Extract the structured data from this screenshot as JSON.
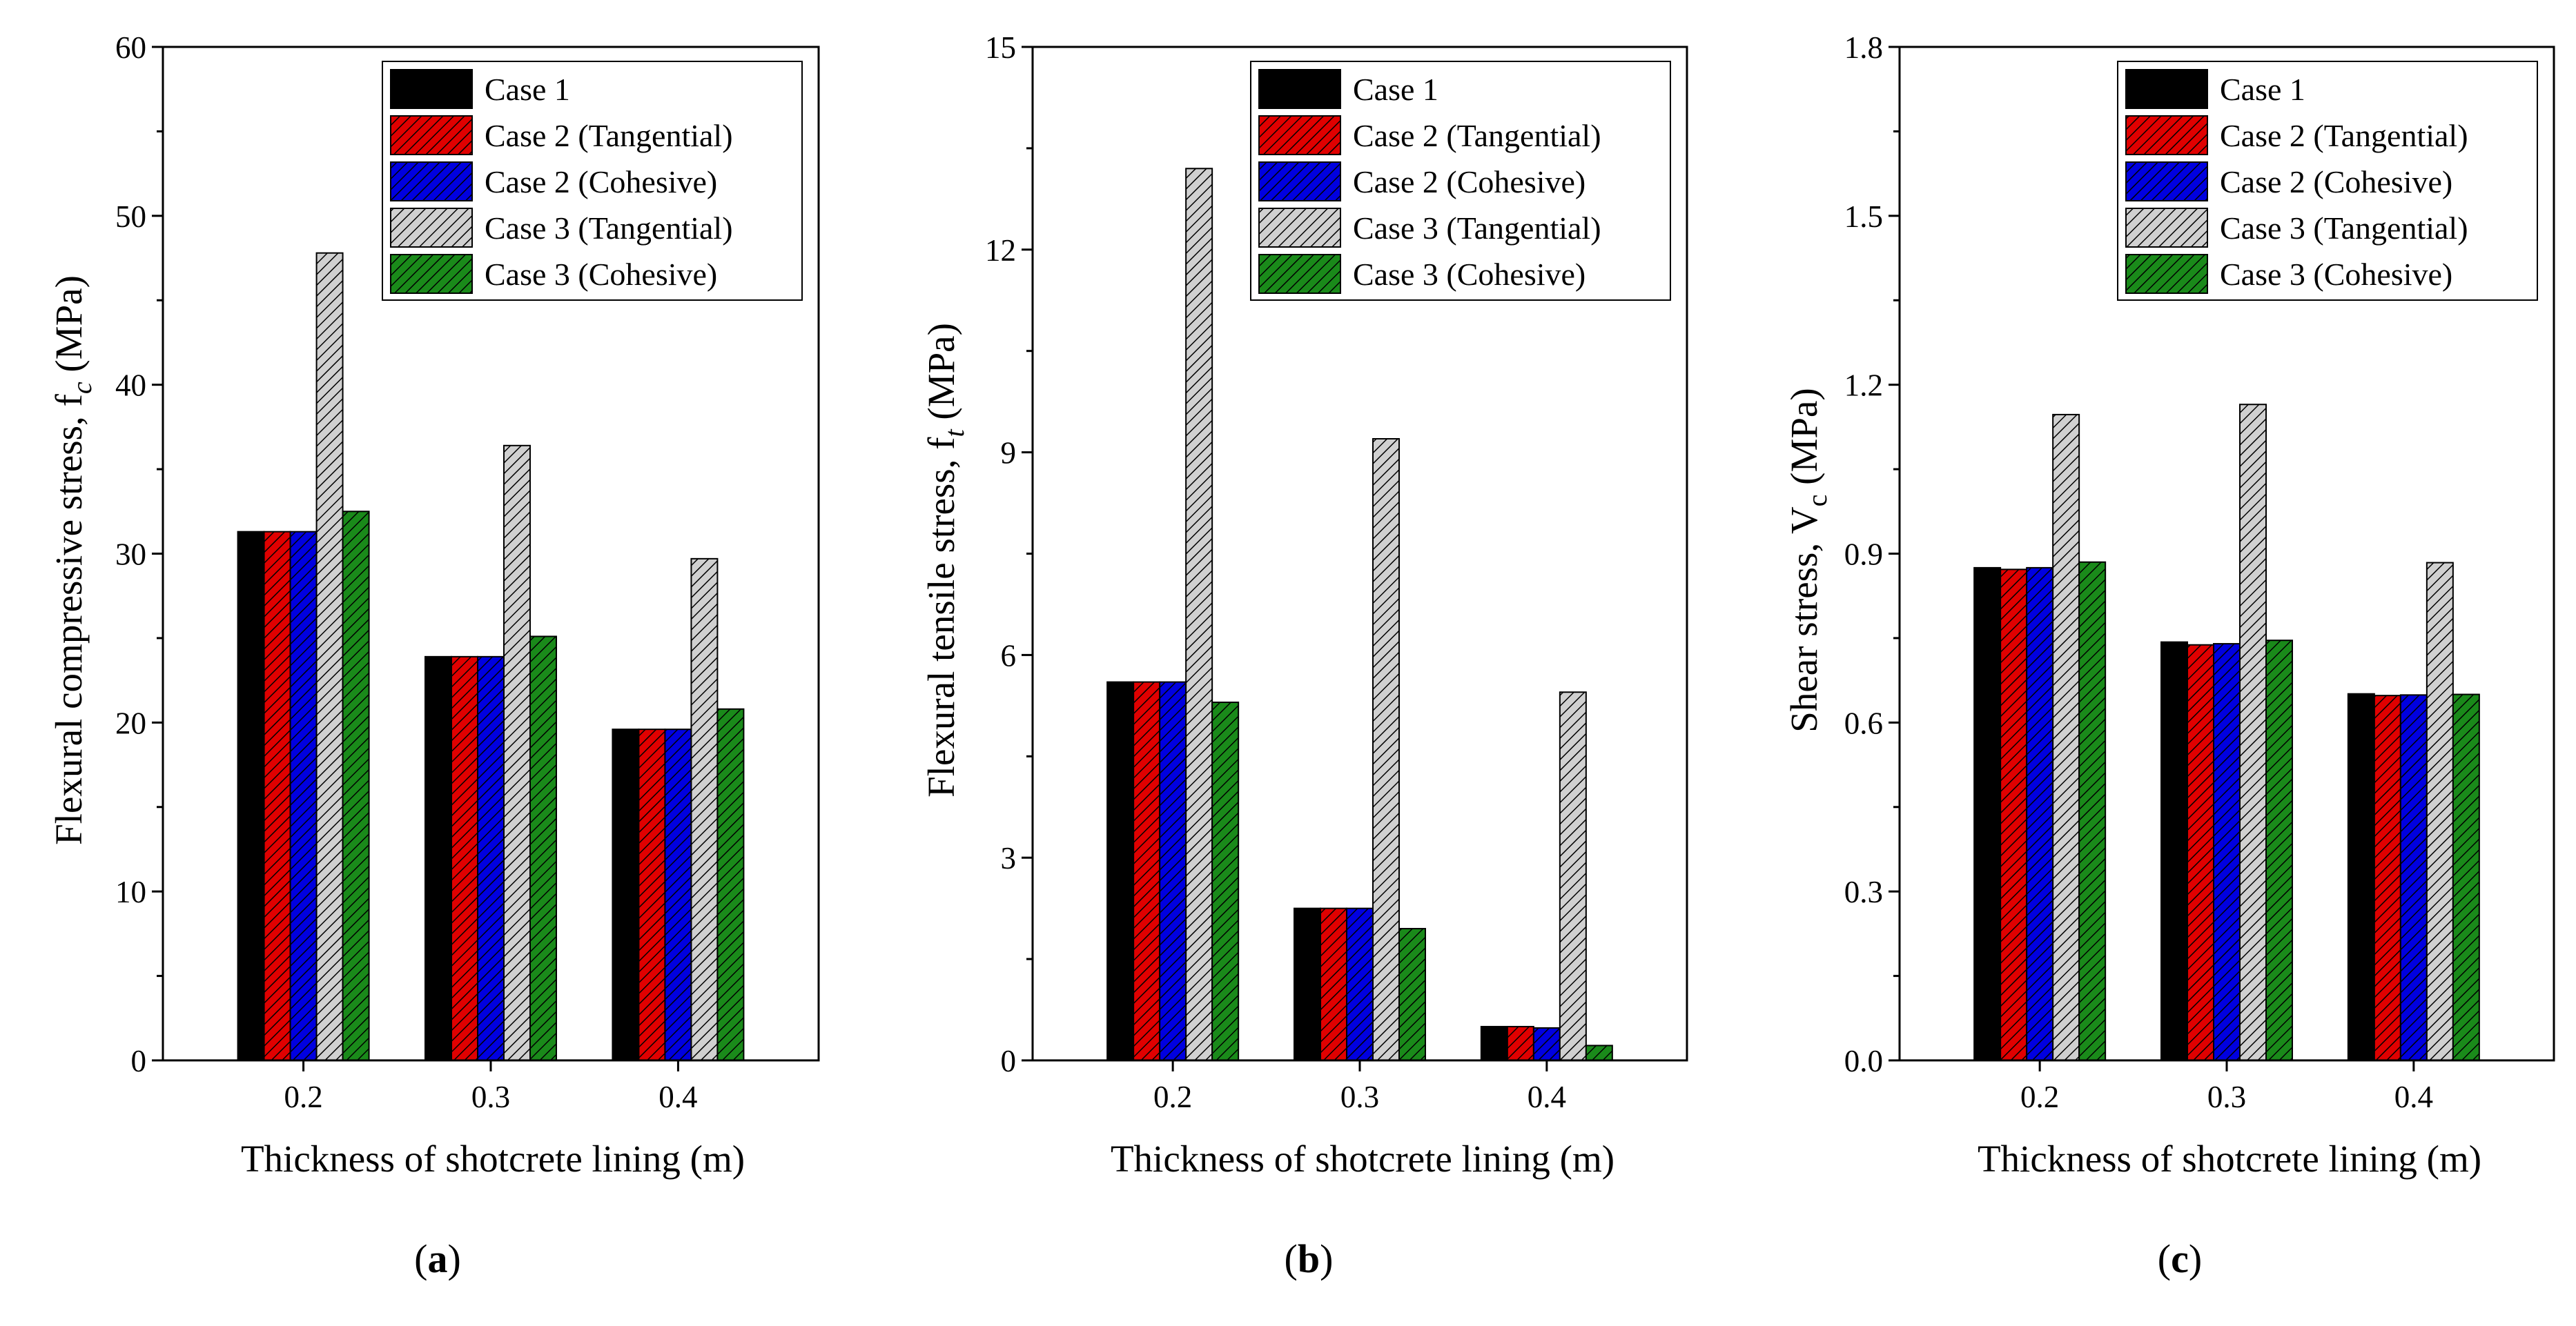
{
  "legend_items": [
    {
      "label": "Case 1",
      "color": "#000000",
      "pattern": "solid-black"
    },
    {
      "label": "Case 2 (Tangential)",
      "color": "#e00000",
      "pattern": "hatch-red"
    },
    {
      "label": "Case 2 (Cohesive)",
      "color": "#0000e0",
      "pattern": "hatch-blue"
    },
    {
      "label": "Case 3 (Tangential)",
      "color": "#d0d0d0",
      "pattern": "hatch-gray"
    },
    {
      "label": "Case 3 (Cohesive)",
      "color": "#1a8a1a",
      "pattern": "hatch-green"
    }
  ],
  "chart_data": [
    {
      "type": "bar",
      "panel_label": "a",
      "categories": [
        "0.2",
        "0.3",
        "0.4"
      ],
      "xlabel": "Thickness of shotcrete lining (m)",
      "ylabel": "Flexural compressive stress, f",
      "ylabel_sub": "c",
      "ylabel_unit": " (MPa)",
      "ylim": [
        0,
        60
      ],
      "yticks": [
        "0",
        "10",
        "20",
        "30",
        "40",
        "50",
        "60"
      ],
      "legend_position": "top-right",
      "series": [
        {
          "name": "Case 1",
          "values": [
            31.3,
            23.9,
            19.6
          ]
        },
        {
          "name": "Case 2 (Tangential)",
          "values": [
            31.3,
            23.9,
            19.6
          ]
        },
        {
          "name": "Case 2 (Cohesive)",
          "values": [
            31.3,
            23.9,
            19.6
          ]
        },
        {
          "name": "Case 3 (Tangential)",
          "values": [
            47.8,
            36.4,
            29.7
          ]
        },
        {
          "name": "Case 3 (Cohesive)",
          "values": [
            32.5,
            25.1,
            20.8
          ]
        }
      ]
    },
    {
      "type": "bar",
      "panel_label": "b",
      "categories": [
        "0.2",
        "0.3",
        "0.4"
      ],
      "xlabel": "Thickness of shotcrete lining (m)",
      "ylabel": "Flexural tensile stress, f",
      "ylabel_sub": "t",
      "ylabel_unit": " (MPa)",
      "ylim": [
        0,
        15
      ],
      "yticks": [
        "0",
        "3",
        "6",
        "9",
        "12",
        "15"
      ],
      "legend_position": "top-right",
      "series": [
        {
          "name": "Case 1",
          "values": [
            5.6,
            2.25,
            0.5
          ]
        },
        {
          "name": "Case 2 (Tangential)",
          "values": [
            5.6,
            2.25,
            0.5
          ]
        },
        {
          "name": "Case 2 (Cohesive)",
          "values": [
            5.6,
            2.25,
            0.48
          ]
        },
        {
          "name": "Case 3 (Tangential)",
          "values": [
            13.2,
            9.2,
            5.45
          ]
        },
        {
          "name": "Case 3 (Cohesive)",
          "values": [
            5.3,
            1.95,
            0.22
          ]
        }
      ]
    },
    {
      "type": "bar",
      "panel_label": "c",
      "categories": [
        "0.2",
        "0.3",
        "0.4"
      ],
      "xlabel": "Thickness of shotcrete lining (m)",
      "ylabel": "Shear stress, V",
      "ylabel_sub": "c",
      "ylabel_unit": " (MPa)",
      "ylim": [
        0,
        1.8
      ],
      "yticks": [
        "0.0",
        "0.3",
        "0.6",
        "0.9",
        "1.2",
        "1.5",
        "1.8"
      ],
      "legend_position": "top-right",
      "series": [
        {
          "name": "Case 1",
          "values": [
            0.875,
            0.743,
            0.651
          ]
        },
        {
          "name": "Case 2 (Tangential)",
          "values": [
            0.872,
            0.738,
            0.648
          ]
        },
        {
          "name": "Case 2 (Cohesive)",
          "values": [
            0.875,
            0.74,
            0.649
          ]
        },
        {
          "name": "Case 3 (Tangential)",
          "values": [
            1.147,
            1.165,
            0.884
          ]
        },
        {
          "name": "Case 3 (Cohesive)",
          "values": [
            0.885,
            0.746,
            0.65
          ]
        }
      ]
    }
  ]
}
